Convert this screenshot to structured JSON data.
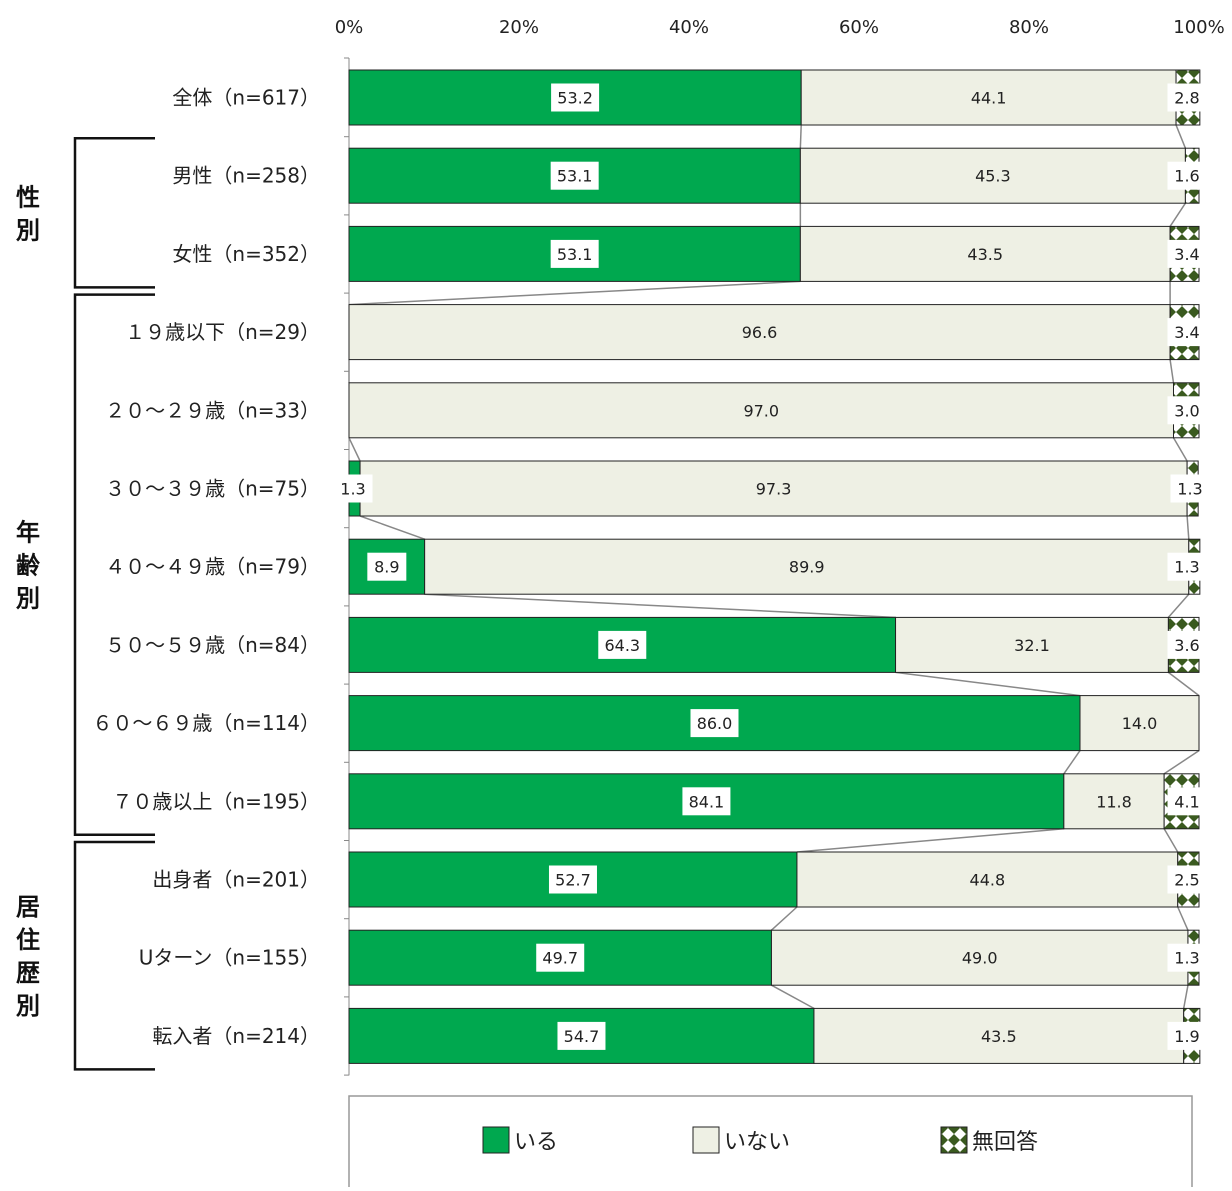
{
  "chart_data": {
    "type": "bar",
    "orientation": "horizontal",
    "stacked": "percent",
    "xlim": [
      0,
      100
    ],
    "x_ticks": [
      "0%",
      "20%",
      "40%",
      "60%",
      "80%",
      "100%"
    ],
    "categories": [
      "全体（n=617）",
      "男性（n=258）",
      "女性（n=352）",
      "１９歳以下（n=29）",
      "２０～２９歳（n=33）",
      "３０～３９歳（n=75）",
      "４０～４９歳（n=79）",
      "５０～５９歳（n=84）",
      "６０～６９歳（n=114）",
      "７０歳以上（n=195）",
      "出身者（n=201）",
      "Uターン（n=155）",
      "転入者（n=214）"
    ],
    "series": [
      {
        "name": "いる",
        "color": "#00a84f",
        "values": [
          53.2,
          53.1,
          53.1,
          0,
          0,
          1.3,
          8.9,
          64.3,
          86.0,
          84.1,
          52.7,
          49.7,
          54.7
        ],
        "labels": [
          "53.2",
          "53.1",
          "53.1",
          "",
          "",
          "1.3",
          "8.9",
          "64.3",
          "86.0",
          "84.1",
          "52.7",
          "49.7",
          "54.7"
        ]
      },
      {
        "name": "いない",
        "color": "#eef0e4",
        "values": [
          44.1,
          45.3,
          43.5,
          96.6,
          97.0,
          97.3,
          89.9,
          32.1,
          14.0,
          11.8,
          44.8,
          49.0,
          43.5
        ],
        "labels": [
          "44.1",
          "45.3",
          "43.5",
          "96.6",
          "97.0",
          "97.3",
          "89.9",
          "32.1",
          "14.0",
          "11.8",
          "44.8",
          "49.0",
          "43.5"
        ]
      },
      {
        "name": "無回答",
        "color": "#3a5a1f",
        "values": [
          2.8,
          1.6,
          3.4,
          3.4,
          3.0,
          1.3,
          1.3,
          3.6,
          0,
          4.1,
          2.5,
          1.3,
          1.9
        ],
        "labels": [
          "2.8",
          "1.6",
          "3.4",
          "3.4",
          "3.0",
          "1.3",
          "1.3",
          "3.6",
          "",
          "4.1",
          "2.5",
          "1.3",
          "1.9"
        ]
      }
    ],
    "groups": [
      {
        "label": "性別",
        "rows": [
          1,
          2
        ]
      },
      {
        "label": "年齢別",
        "rows": [
          3,
          9
        ]
      },
      {
        "label": "居住歴別",
        "rows": [
          10,
          12
        ]
      }
    ],
    "legend_position": "bottom",
    "series_lines": true,
    "grid": false
  }
}
